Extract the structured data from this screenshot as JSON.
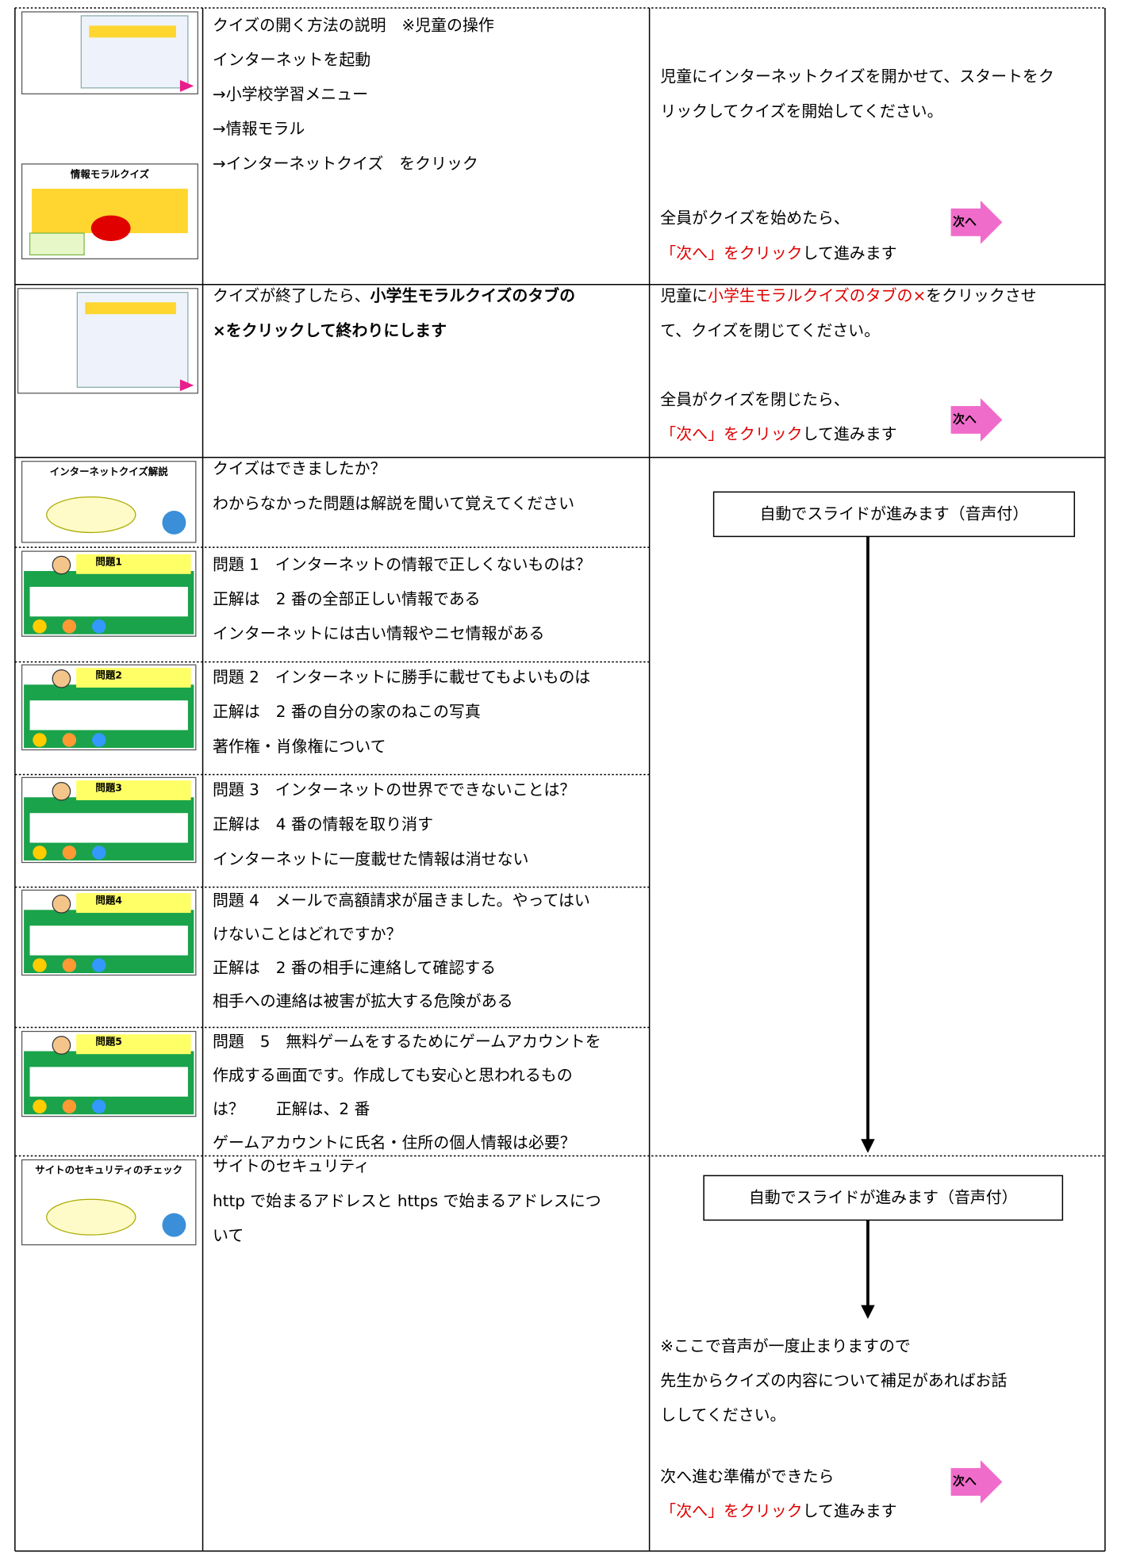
{
  "rows": [
    {
      "thumbnails": [
        {},
        {
          "title": "情報モラルクイズ"
        }
      ],
      "instructions": [
        [
          {
            "text": "クイズの開く方法の説明　※児童の操作"
          }
        ],
        [
          {
            "text": "インターネットを起動"
          }
        ],
        [
          {
            "text": "→小学校学習メニュー"
          }
        ],
        [
          {
            "text": "→情報モラル"
          }
        ],
        [
          {
            "text": "→インターネットクイズ　をクリック"
          }
        ]
      ],
      "notes": [
        [
          {
            "text": "児童にインターネットクイズを開かせて、スタートをク"
          }
        ],
        [
          {
            "text": "リックしてクイズを開始してください。"
          }
        ],
        [
          {
            "text": "全員がクイズを始めたら、"
          }
        ],
        [
          {
            "text": "「次へ」をクリック",
            "style": "red"
          },
          {
            "text": "して進みます"
          }
        ]
      ],
      "button": "次へ"
    },
    {
      "thumbnails": [
        {}
      ],
      "instructions": [
        [
          {
            "text": "クイズが終了したら、"
          },
          {
            "text": "小学生モラルクイズのタブの",
            "style": "bold"
          }
        ],
        [
          {
            "text": "×をクリックして終わりにします",
            "style": "bold"
          }
        ]
      ],
      "notes": [
        [
          {
            "text": "児童に"
          },
          {
            "text": "小学生モラルクイズのタブの×",
            "style": "red"
          },
          {
            "text": "をクリックさせ"
          }
        ],
        [
          {
            "text": "て、クイズを閉じてください。"
          }
        ],
        [
          {
            "text": "全員がクイズを閉じたら、"
          }
        ],
        [
          {
            "text": "「次へ」をクリック",
            "style": "red"
          },
          {
            "text": "して進みます"
          }
        ]
      ],
      "button": "次へ"
    },
    {
      "thumbnails": [
        {
          "title": "インターネットクイズ解説"
        }
      ],
      "instructions": [
        [
          {
            "text": "クイズはできましたか？"
          }
        ],
        [
          {
            "text": "わからなかった問題は解説を聞いて覚えてください"
          }
        ]
      ],
      "box": "自動でスライドが進みます（音声付）"
    },
    {
      "thumbnails": [
        {
          "title": "問題1"
        }
      ],
      "instructions": [
        [
          {
            "text": "問題 1　インターネットの情報で正しくないものは？"
          }
        ],
        [
          {
            "text": "正解は　2 番の全部正しい情報である"
          }
        ],
        [
          {
            "text": "インターネットには古い情報やニセ情報がある"
          }
        ]
      ]
    },
    {
      "thumbnails": [
        {
          "title": "問題2"
        }
      ],
      "instructions": [
        [
          {
            "text": "問題 2　インターネットに勝手に載せてもよいものは"
          }
        ],
        [
          {
            "text": "正解は　2 番の自分の家のねこの写真"
          }
        ],
        [
          {
            "text": "著作権・肖像権について"
          }
        ]
      ]
    },
    {
      "thumbnails": [
        {
          "title": "問題3"
        }
      ],
      "instructions": [
        [
          {
            "text": "問題 3　インターネットの世界でできないことは？"
          }
        ],
        [
          {
            "text": "正解は　4 番の情報を取り消す"
          }
        ],
        [
          {
            "text": "インターネットに一度載せた情報は消せない"
          }
        ]
      ]
    },
    {
      "thumbnails": [
        {
          "title": "問題4"
        }
      ],
      "instructions": [
        [
          {
            "text": "問題 4　メールで高額請求が届きました。やってはい"
          }
        ],
        [
          {
            "text": "けないことはどれですか？"
          }
        ],
        [
          {
            "text": "正解は　2 番の相手に連絡して確認する"
          }
        ],
        [
          {
            "text": "相手への連絡は被害が拡大する危険がある"
          }
        ]
      ]
    },
    {
      "thumbnails": [
        {
          "title": "問題5"
        }
      ],
      "instructions": [
        [
          {
            "text": "問題　5　無料ゲームをするためにゲームアカウントを"
          }
        ],
        [
          {
            "text": "作成する画面です。作成しても安心と思われるもの"
          }
        ],
        [
          {
            "text": "は？　　正解は、2 番"
          }
        ],
        [
          {
            "text": "ゲームアカウントに氏名・住所の個人情報は必要？"
          }
        ]
      ]
    },
    {
      "thumbnails": [
        {
          "title": "サイトのセキュリティのチェック"
        }
      ],
      "instructions": [
        [
          {
            "text": "サイトのセキュリティ"
          }
        ],
        [
          {
            "text": "http で始まるアドレスと https で始まるアドレスにつ"
          }
        ],
        [
          {
            "text": "いて"
          }
        ]
      ],
      "box": "自動でスライドが進みます（音声付）",
      "notes": [
        [
          {
            "text": "※ここで音声が一度止まりますので"
          }
        ],
        [
          {
            "text": "先生からクイズの内容について補足があればお話"
          }
        ],
        [
          {
            "text": "ししてください。"
          }
        ],
        [
          {
            "text": "次へ進む準備ができたら"
          }
        ],
        [
          {
            "text": "「次へ」をクリック",
            "style": "red"
          },
          {
            "text": "して進みます"
          }
        ]
      ],
      "button": "次へ"
    }
  ]
}
